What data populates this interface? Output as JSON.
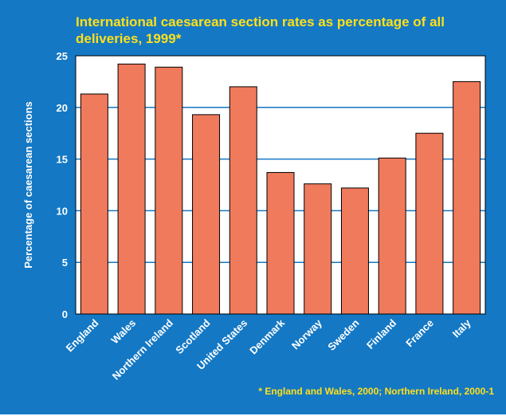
{
  "chart_data": {
    "type": "bar",
    "title": "International caesarean section rates as percentage of all deliveries, 1999*",
    "ylabel": "Percentage of caesarean sections",
    "xlabel": "",
    "categories": [
      "England",
      "Wales",
      "Northern Ireland",
      "Scotland",
      "United States",
      "Denmark",
      "Norway",
      "Sweden",
      "Finland",
      "France",
      "Italy"
    ],
    "values": [
      21.3,
      24.2,
      23.9,
      19.3,
      22.0,
      13.7,
      12.6,
      12.2,
      15.1,
      17.5,
      22.5
    ],
    "ylim": [
      0,
      25
    ],
    "yticks": [
      0,
      5,
      10,
      15,
      20,
      25
    ],
    "grid": true,
    "footnote": "* England and Wales, 2000; Northern Ireland, 2000-1",
    "colors": {
      "background": "#1478c4",
      "plot": "#ffffff",
      "bar": "#f07a5c",
      "title": "#ffe01a",
      "grid": "#1478c4"
    }
  }
}
